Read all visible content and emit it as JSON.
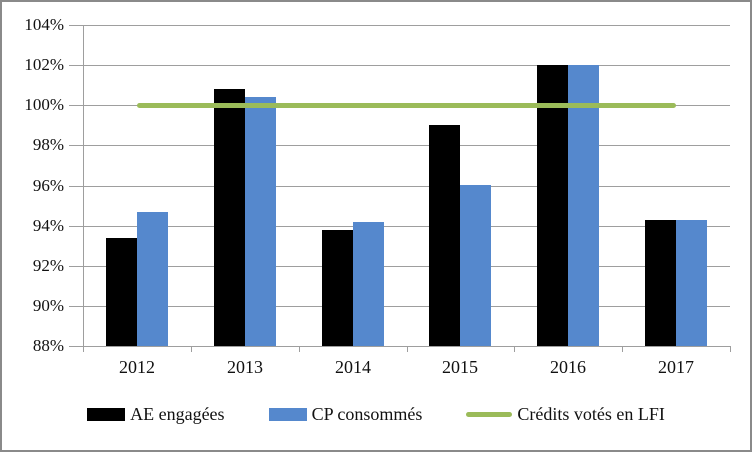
{
  "chart_data": {
    "type": "bar",
    "title": "",
    "categories": [
      "2012",
      "2013",
      "2014",
      "2015",
      "2016",
      "2017"
    ],
    "series": [
      {
        "name": "AE engagées",
        "color": "#000000",
        "values": [
          93.4,
          100.8,
          93.8,
          99.0,
          102.0,
          94.3
        ]
      },
      {
        "name": "CP consommés",
        "color": "#5588CD",
        "values": [
          94.7,
          100.4,
          94.2,
          96.0,
          102.0,
          94.3
        ]
      }
    ],
    "reference_line": {
      "name": "Crédits votés en LFI",
      "color": "#9BBB59",
      "value": 100,
      "span": "category centers 2012 to 2017"
    },
    "y_axis": {
      "min": 88,
      "max": 104,
      "step": 2,
      "tick_labels": [
        "104%",
        "102%",
        "100%",
        "98%",
        "96%",
        "94%",
        "92%",
        "90%",
        "88%"
      ]
    },
    "xlabel": "",
    "ylabel": "",
    "grid": true,
    "grid_color": "#9e9e9e",
    "legend_position": "bottom"
  }
}
